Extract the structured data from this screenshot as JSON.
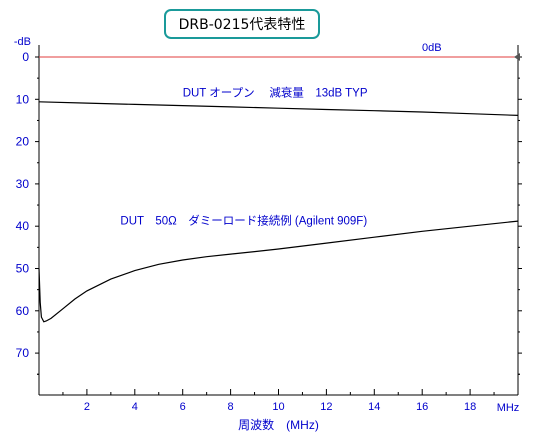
{
  "chart_data": {
    "type": "line",
    "title": "DRB-0215代表特性",
    "xlabel": "周波数　(MHz)",
    "ylabel": "-dB",
    "x_unit_label": "MHz",
    "xlim": [
      0,
      20
    ],
    "ylim": [
      0,
      80
    ],
    "y_inverted": true,
    "x_ticks": [
      2,
      4,
      6,
      8,
      10,
      12,
      14,
      16,
      18
    ],
    "x_tick_labels": [
      "2",
      "4",
      "6",
      "8",
      "10",
      "12",
      "14",
      "16",
      "18"
    ],
    "y_ticks": [
      0,
      10,
      20,
      30,
      40,
      50,
      60,
      70
    ],
    "y_tick_labels": [
      "0",
      "10",
      "20",
      "30",
      "40",
      "50",
      "60",
      "70"
    ],
    "grid": false,
    "reference_line": {
      "label": "0dB",
      "value": 0,
      "color": "#e03c3c",
      "marker_color": "#555555"
    },
    "series": [
      {
        "label": "DUT オープン　 減衰量　13dB TYP",
        "color": "#000000",
        "x": [
          0,
          2,
          4,
          6,
          8,
          10,
          12,
          14,
          16,
          18,
          20
        ],
        "y": [
          10.6,
          10.9,
          11.2,
          11.5,
          11.8,
          12.1,
          12.4,
          12.7,
          13.0,
          13.4,
          13.8
        ]
      },
      {
        "label": "DUT　50Ω　ダミーロード接続例 (Agilent 909F)",
        "color": "#000000",
        "x": [
          0,
          0.05,
          0.1,
          0.2,
          0.3,
          0.5,
          1,
          1.5,
          2,
          3,
          4,
          5,
          6,
          7,
          8,
          9,
          10,
          12,
          14,
          16,
          18,
          20
        ],
        "y": [
          50,
          58,
          61.5,
          62.6,
          62.4,
          61.8,
          59.5,
          57.2,
          55.3,
          52.5,
          50.5,
          49.0,
          48.0,
          47.2,
          46.6,
          46.0,
          45.4,
          44.0,
          42.6,
          41.2,
          40.0,
          38.8
        ]
      }
    ],
    "colors": {
      "axis": "#000000",
      "text": "#0000cc",
      "title_border": "#1a9a9a"
    }
  }
}
